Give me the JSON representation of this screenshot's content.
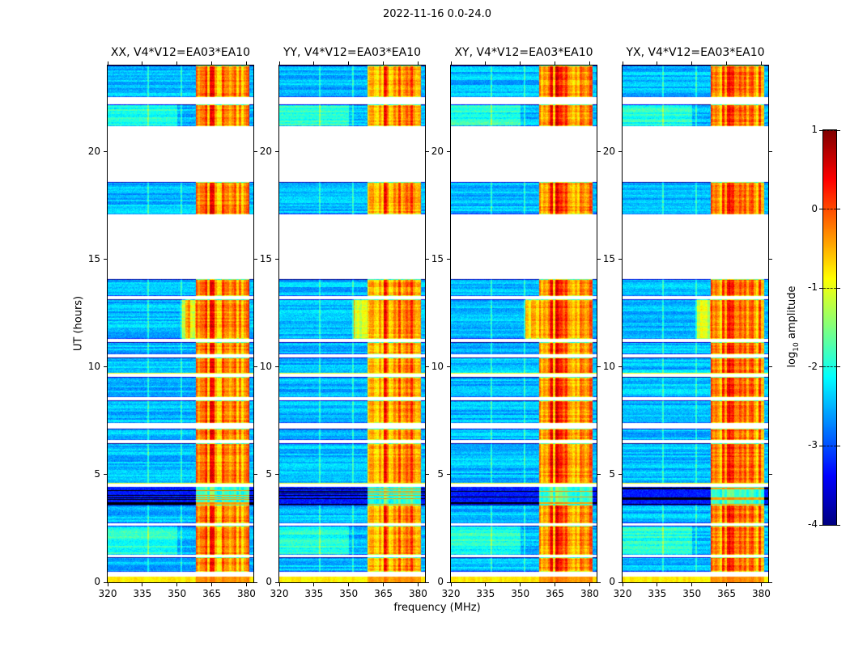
{
  "figure": {
    "title": "2022-11-16 0.0-24.0",
    "xlabel": "frequency (MHz)",
    "ylabel": "UT (hours)",
    "colorbar_label": {
      "prefix": "log",
      "sub": "10",
      "suffix": " amplitude"
    }
  },
  "chart_data": {
    "type": "heatmap",
    "title": "2022-11-16 0.0-24.0",
    "xlabel": "frequency (MHz)",
    "ylabel": "UT (hours)",
    "panels": [
      {
        "id": "XX",
        "title": "XX, V4*V12=EA03*EA10",
        "seed": 11
      },
      {
        "id": "YY",
        "title": "YY, V4*V12=EA03*EA10",
        "seed": 22
      },
      {
        "id": "XY",
        "title": "XY, V4*V12=EA03*EA10",
        "seed": 33
      },
      {
        "id": "YX",
        "title": "YX, V4*V12=EA03*EA10",
        "seed": 44
      }
    ],
    "x_axis": {
      "label": "frequency (MHz)",
      "unit": "MHz",
      "min": 320,
      "max": 383,
      "ticks": [
        320,
        335,
        350,
        365,
        380
      ]
    },
    "y_axis": {
      "label": "UT (hours)",
      "min": 0,
      "max": 24,
      "ticks": [
        0,
        5,
        10,
        15,
        20
      ]
    },
    "colorbar": {
      "label": "log10 amplitude",
      "colormap": "jet",
      "min": -4,
      "max": 1,
      "ticks": [
        1,
        0,
        -1,
        -2,
        -3,
        -4
      ]
    },
    "value_model": {
      "background_level": -2.45,
      "rfi_band_mhz": [
        358,
        381
      ],
      "rfi_level_range": [
        -1.3,
        0.95
      ],
      "narrowband_lines_mhz": [
        337.3,
        351.7
      ]
    },
    "segments": [
      {
        "t0": 0.0,
        "t1": 0.28,
        "kind": "bright"
      },
      {
        "t0": 0.28,
        "t1": 0.5,
        "kind": "gap"
      },
      {
        "t0": 0.5,
        "t1": 1.15,
        "kind": "noise"
      },
      {
        "t0": 1.15,
        "t1": 1.28,
        "kind": "gap"
      },
      {
        "t0": 1.28,
        "t1": 2.62,
        "kind": "noise",
        "patch": true
      },
      {
        "t0": 2.62,
        "t1": 2.75,
        "kind": "gap"
      },
      {
        "t0": 2.75,
        "t1": 3.62,
        "kind": "noise"
      },
      {
        "t0": 3.62,
        "t1": 4.45,
        "kind": "dark"
      },
      {
        "t0": 4.45,
        "t1": 4.6,
        "kind": "gap"
      },
      {
        "t0": 4.6,
        "t1": 6.45,
        "kind": "noise",
        "edge_hot": true
      },
      {
        "t0": 6.45,
        "t1": 6.6,
        "kind": "gap"
      },
      {
        "t0": 6.6,
        "t1": 7.15,
        "kind": "noise"
      },
      {
        "t0": 7.15,
        "t1": 7.4,
        "kind": "gap"
      },
      {
        "t0": 7.4,
        "t1": 8.45,
        "kind": "noise"
      },
      {
        "t0": 8.45,
        "t1": 8.6,
        "kind": "gap"
      },
      {
        "t0": 8.6,
        "t1": 9.55,
        "kind": "noise"
      },
      {
        "t0": 9.55,
        "t1": 9.7,
        "kind": "gap"
      },
      {
        "t0": 9.7,
        "t1": 10.45,
        "kind": "noise",
        "edge_hot": true
      },
      {
        "t0": 10.45,
        "t1": 10.6,
        "kind": "gap"
      },
      {
        "t0": 10.6,
        "t1": 11.15,
        "kind": "noise"
      },
      {
        "t0": 11.15,
        "t1": 11.3,
        "kind": "gap"
      },
      {
        "t0": 11.3,
        "t1": 13.15,
        "kind": "noise",
        "rfi_start": 352
      },
      {
        "t0": 13.15,
        "t1": 13.3,
        "kind": "gap"
      },
      {
        "t0": 13.3,
        "t1": 14.1,
        "kind": "noise"
      },
      {
        "t0": 14.1,
        "t1": 17.1,
        "kind": "gap"
      },
      {
        "t0": 17.1,
        "t1": 18.6,
        "kind": "noise"
      },
      {
        "t0": 18.6,
        "t1": 21.2,
        "kind": "gap"
      },
      {
        "t0": 21.2,
        "t1": 22.2,
        "kind": "noise",
        "patch": true
      },
      {
        "t0": 22.2,
        "t1": 22.55,
        "kind": "gap"
      },
      {
        "t0": 22.55,
        "t1": 24.0,
        "kind": "noise"
      }
    ]
  }
}
